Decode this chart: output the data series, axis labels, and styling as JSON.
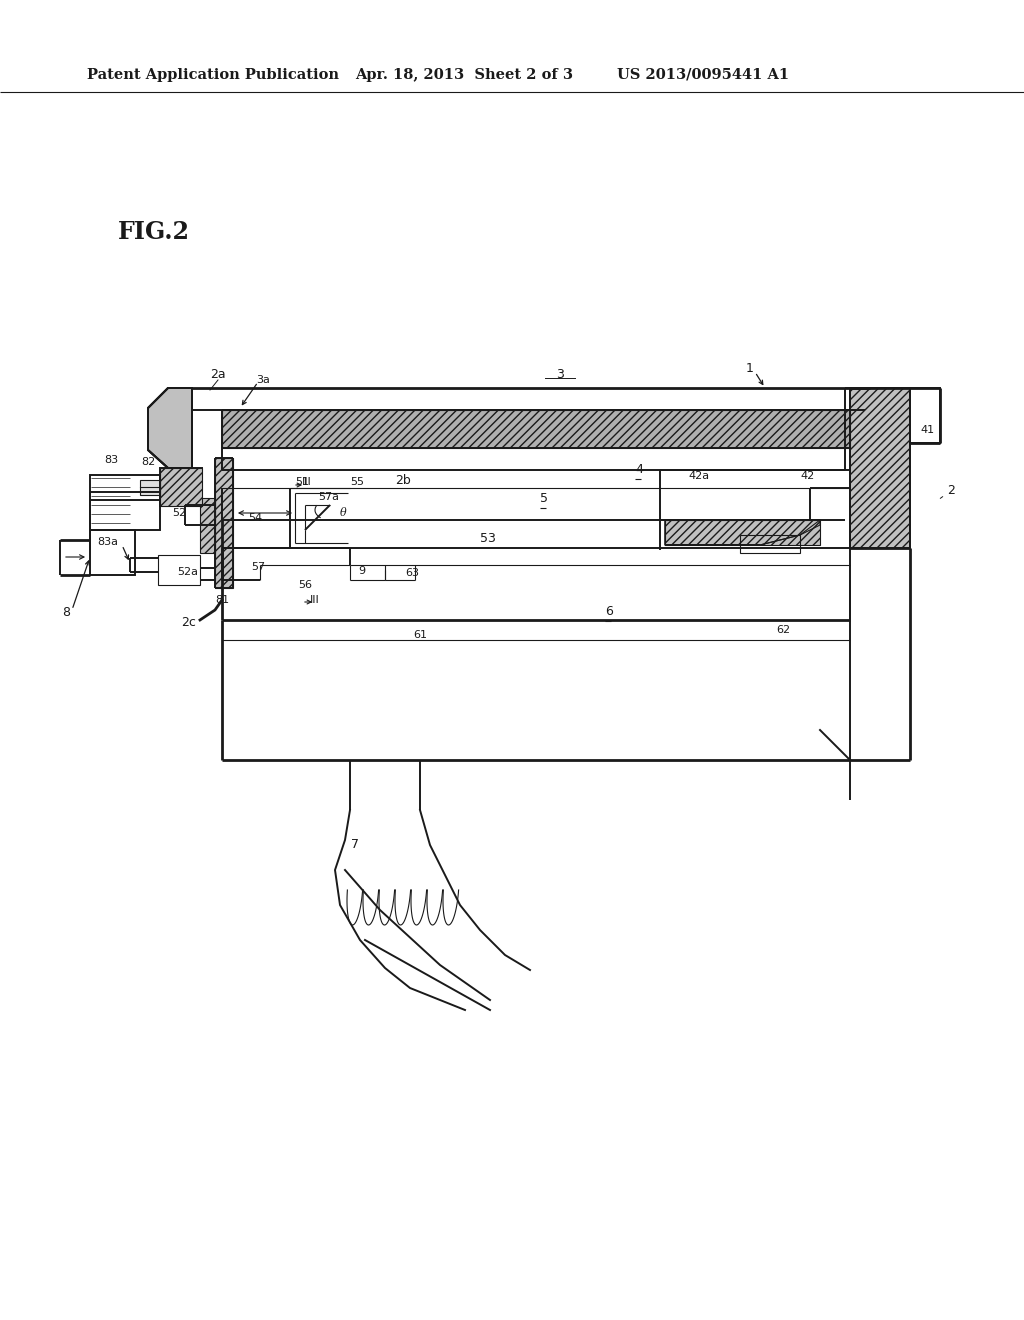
{
  "bg_color": "#ffffff",
  "line_color": "#1a1a1a",
  "header_left": "Patent Application Publication",
  "header_mid": "Apr. 18, 2013  Sheet 2 of 3",
  "header_right": "US 2013/0095441 A1",
  "fig_label": "FIG.2",
  "header_fontsize": 10.5,
  "fig_label_fontsize": 17,
  "label_fontsize": 9,
  "small_label_fontsize": 8,
  "lw1": 0.8,
  "lw2": 1.4,
  "lw3": 2.0
}
